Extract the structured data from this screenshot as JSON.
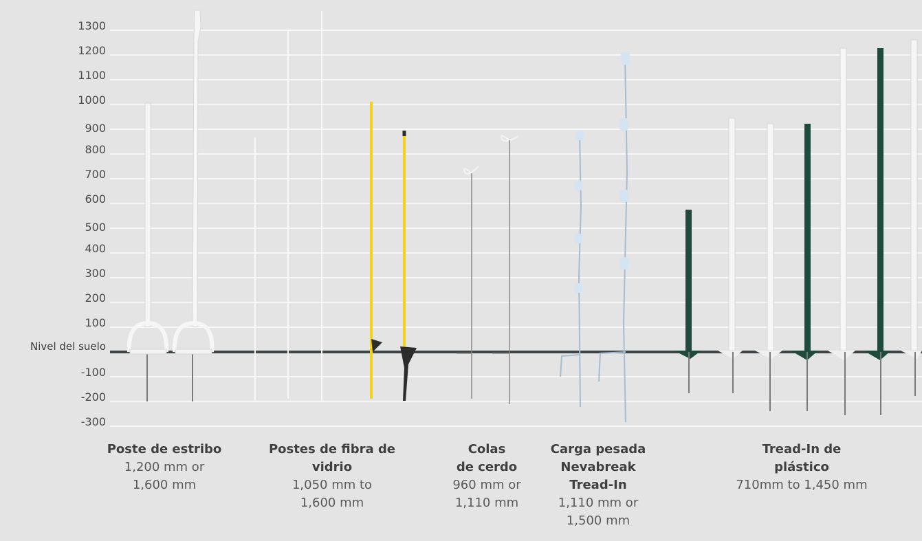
{
  "scale": {
    "ground_label": "Nivel del suelo",
    "ticks": [
      "1300",
      "1200",
      "1100",
      "1000",
      "900",
      "800",
      "700",
      "600",
      "500",
      "400",
      "300",
      "200",
      "100",
      "-100",
      "-200",
      "-300"
    ]
  },
  "groups": [
    {
      "title": "Poste de estribo",
      "range": "1,200 mm or\n1,600 mm"
    },
    {
      "title": "Postes de fibra de\nvidrio",
      "range": "1,050 mm to\n1,600 mm"
    },
    {
      "title": "Colas\nde cerdo",
      "range": "960 mm or\n1,110 mm"
    },
    {
      "title": "Carga pesada\nNevabreak\nTread-In",
      "range": "1,110 mm or\n1,500 mm"
    },
    {
      "title": "Tread-In de\nplástico",
      "range": "710mm to 1,450 mm"
    }
  ],
  "colors": {
    "background": "#e4e4e4",
    "grid": "#f7f7f7",
    "ground": "#3d4448",
    "white_post": "#f6f6f6",
    "yellow_post": "#f2d21b",
    "green_post": "#1f4a3d",
    "insulator_blue": "#c8ddef",
    "steel_spike": "#7a7a7a"
  }
}
